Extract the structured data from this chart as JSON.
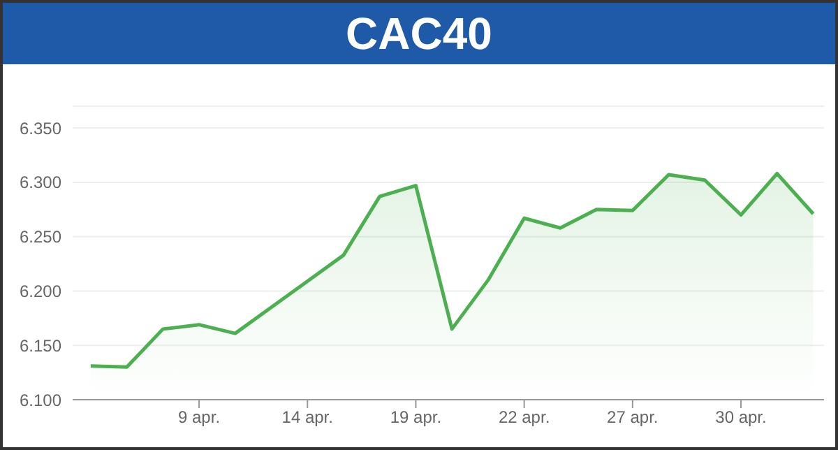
{
  "chart_data": {
    "type": "area",
    "title": "CAC40",
    "categories": [
      null,
      null,
      null,
      "9 apr.",
      null,
      null,
      "14 apr.",
      null,
      null,
      "19 apr.",
      null,
      null,
      "22 apr.",
      null,
      null,
      "27 apr.",
      null,
      null,
      "30 apr.",
      null,
      null
    ],
    "series": [
      {
        "color": "#4caf50",
        "values": [
          6.131,
          6.13,
          6.165,
          6.169,
          6.161,
          6.185,
          6.209,
          6.233,
          6.287,
          6.297,
          6.165,
          6.21,
          6.267,
          6.258,
          6.275,
          6.274,
          6.307,
          6.302,
          6.27,
          6.308,
          6.271
        ]
      }
    ],
    "ylim": [
      6.1,
      6.37
    ],
    "yticks": [
      {
        "value": 6.1,
        "label": "6.100"
      },
      {
        "value": 6.15,
        "label": "6.150"
      },
      {
        "value": 6.2,
        "label": "6.200"
      },
      {
        "value": 6.25,
        "label": "6.250"
      },
      {
        "value": 6.3,
        "label": "6.300"
      },
      {
        "value": 6.35,
        "label": "6.350"
      }
    ],
    "grid": "y",
    "marker": "none",
    "line_style": "solid"
  }
}
